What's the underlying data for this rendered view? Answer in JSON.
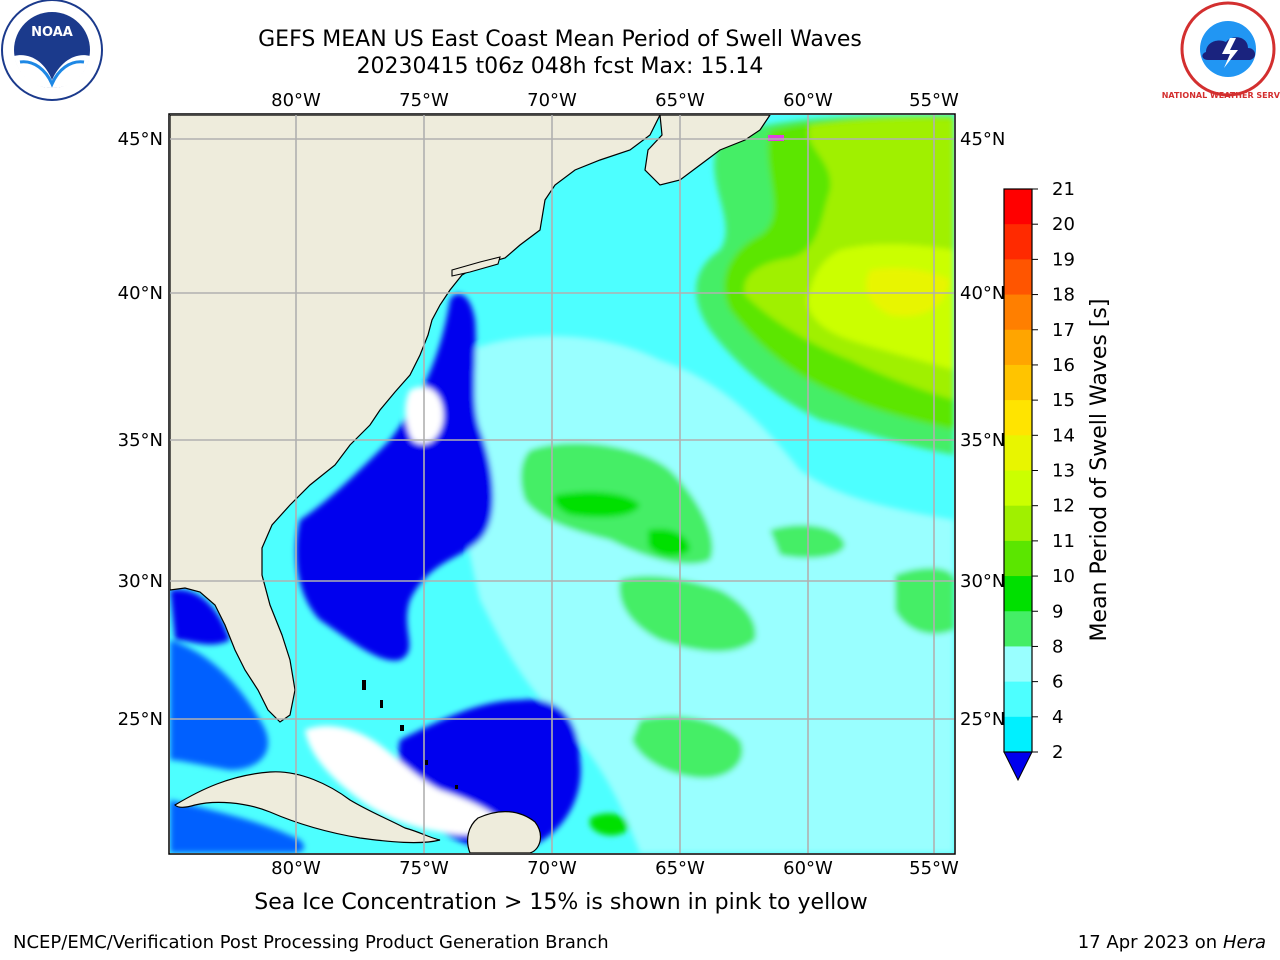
{
  "title_line1": "GEFS MEAN US East Coast Mean Period of Swell Waves",
  "title_line2": "20230415 t06z 048h fcst   Max: 15.14",
  "lon_labels": [
    "80°W",
    "75°W",
    "70°W",
    "65°W",
    "60°W",
    "55°W"
  ],
  "lat_labels": [
    "45°N",
    "40°N",
    "35°N",
    "30°N",
    "25°N"
  ],
  "colorbar": {
    "label": "Mean Period of Swell Waves [s]",
    "ticks": [
      "21",
      "20",
      "19",
      "18",
      "17",
      "16",
      "15",
      "14",
      "13",
      "12",
      "11",
      "10",
      "9",
      "8",
      "6",
      "4",
      "2"
    ],
    "colors": [
      "#ff0000",
      "#ff2a00",
      "#ff5500",
      "#ff7f00",
      "#ffa500",
      "#ffc400",
      "#ffe400",
      "#e8f500",
      "#cbff00",
      "#a0f000",
      "#5be600",
      "#00e000",
      "#44ee66",
      "#99ffff",
      "#4dffff",
      "#00f0ff",
      "#00b0ff",
      "#0060ff",
      "#0000ee"
    ]
  },
  "note": "Sea Ice Concentration > 15% is shown in pink to yellow",
  "footer_left": "NCEP/EMC/Verification Post Processing Product Generation Branch",
  "footer_right_date": "17 Apr 2023 on",
  "footer_right_host": "Hera",
  "logos": {
    "left": "NOAA",
    "right": "NATIONAL WEATHER SERVICE"
  }
}
